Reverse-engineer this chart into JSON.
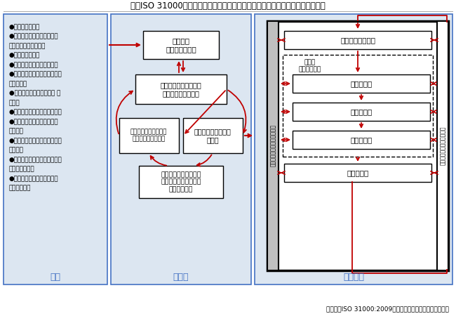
{
  "title": "図：ISO 31000におけるリスクマネジメントの原則、枠組み及びプロセスの関係",
  "source_text": "（出所）ISO 31000:2009（英和対訳版）より大和総研作成",
  "red": "#c00000",
  "blue": "#4472c4",
  "light_blue_bg": "#dce6f1",
  "principles": [
    "●価値を創造する",
    "●組織のすべてのプロセスに\n　おいて不可欠な部分",
    "●意思決定の一部",
    "●不確かさに明確に対処する",
    "●体系的かつ組織的で、時宜を\n　得ている",
    "●利用可能な最善の情報に 基\n　づく",
    "●組織に合わせて作られている",
    "●人的及び文化的要因を考に\n　入れる",
    "●透明性があり、かつ、包含的\n　である",
    "●動的で、繰り返し行われ、変\n　化に対応する",
    "●組織の継続的改善及び強化\n　を促進する"
  ],
  "label_genri": "原則",
  "label_wakugumi": "枠組み",
  "label_process": "プロセス",
  "box_shireikomi": "指令及び\nコミットメント",
  "box_sekkei": "リスクを運営管理する\nための枠組みの設計",
  "box_jissen": "リスクマネジメント\nの実践",
  "box_kaizen": "リスクマネジメントの\n枠組みの継続的改善",
  "box_monitoring": "リスクマネジメントの\n枠組みのモニタリング\n及びレビュー",
  "box_jokyo": "組織の状況の確定",
  "box_assessment_label": "リスク\nアセスメント",
  "box_tokusei": "リスク特定",
  "box_bunseki": "リスク分析",
  "box_hyoka": "リスク評価",
  "box_taiou": "リスク対応",
  "label_comm_left": "コミュニケーション及び協議",
  "label_monitor_right": "モニタリング及びレビュー"
}
